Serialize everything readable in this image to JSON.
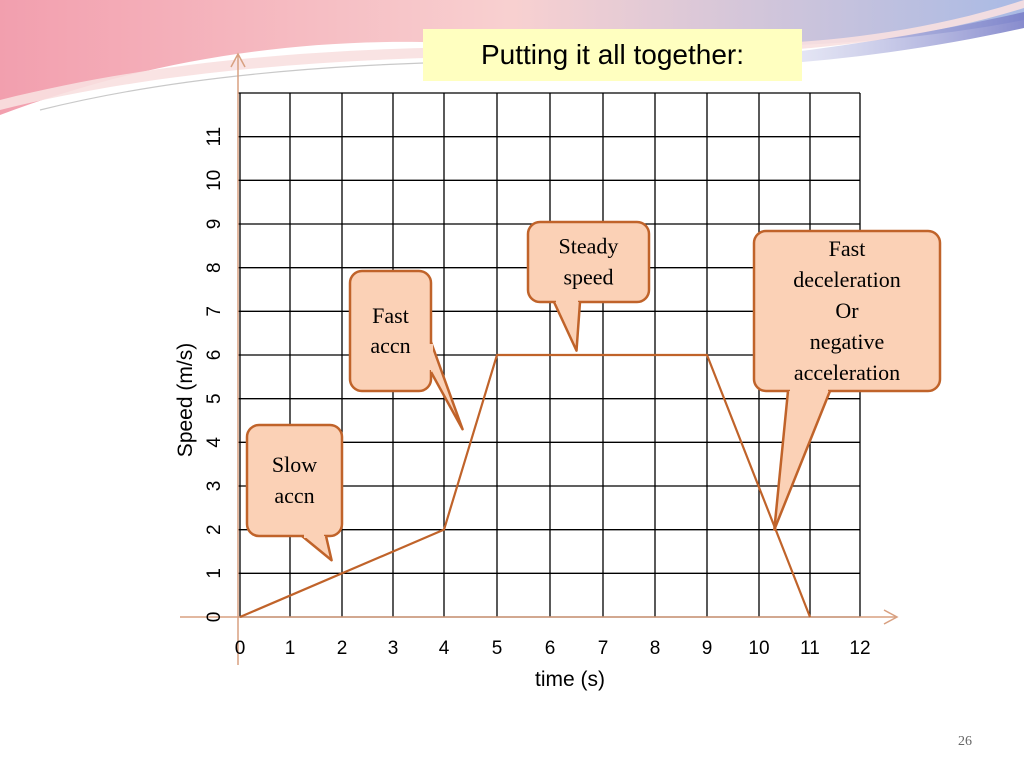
{
  "slide": {
    "title": "Putting it all together:",
    "slide_number": "26"
  },
  "colors": {
    "title_bg": "#ffffc0",
    "line": "#c0632a",
    "callout_fill": "#fbd1b6",
    "callout_stroke": "#c0632a",
    "grid": "#000000",
    "axis": "#d8a080"
  },
  "chart_data": {
    "type": "line",
    "title": "",
    "xlabel": "time (s)",
    "ylabel": "Speed (m/s)",
    "xlim": [
      0,
      12
    ],
    "ylim": [
      0,
      12
    ],
    "x_ticks": [
      0,
      1,
      2,
      3,
      4,
      5,
      6,
      7,
      8,
      9,
      10,
      11,
      12
    ],
    "y_ticks": [
      0,
      1,
      2,
      3,
      4,
      5,
      6,
      7,
      8,
      9,
      10,
      11
    ],
    "grid": true,
    "series": [
      {
        "name": "",
        "points": [
          [
            0,
            0
          ],
          [
            4,
            2
          ],
          [
            5,
            6
          ],
          [
            9,
            6
          ],
          [
            11,
            0
          ]
        ]
      }
    ],
    "annotations": [
      {
        "id": "slow",
        "lines": [
          "Slow",
          "accn"
        ],
        "target": [
          1.8,
          1.3
        ]
      },
      {
        "id": "fast-accn",
        "lines": [
          "Fast",
          "accn"
        ],
        "target": [
          4.35,
          4.3
        ]
      },
      {
        "id": "steady",
        "lines": [
          "Steady",
          "speed"
        ],
        "target": [
          6.5,
          6.1
        ]
      },
      {
        "id": "fast-decel",
        "lines": [
          "Fast",
          "deceleration",
          "Or",
          "negative",
          "acceleration"
        ],
        "target": [
          10.3,
          2.0
        ]
      }
    ]
  }
}
